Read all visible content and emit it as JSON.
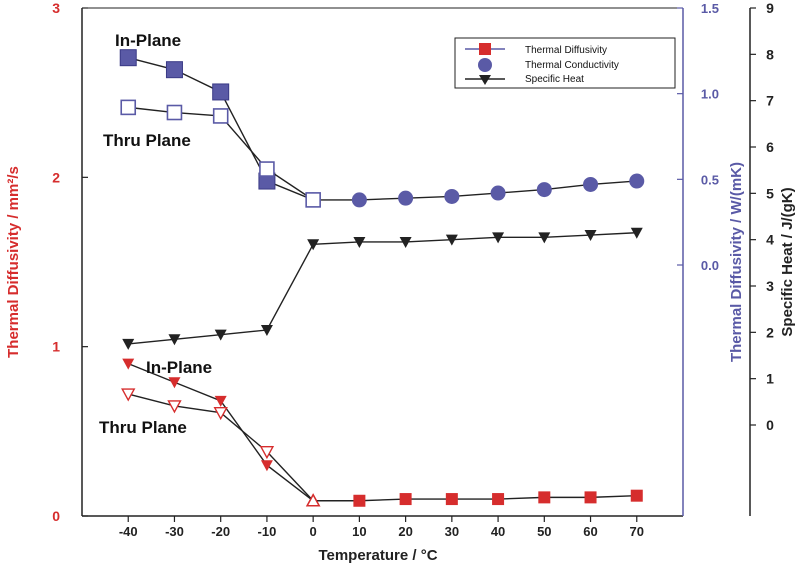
{
  "chart_data": {
    "type": "line",
    "xlabel": "Temperature / °C",
    "x_ticks": [
      "-40",
      "-30",
      "-20",
      "-10",
      "0",
      "10",
      "20",
      "30",
      "40",
      "50",
      "60",
      "70"
    ],
    "xlim": [
      -50,
      80
    ],
    "y_left": {
      "label": "Thermal Diffusivity / mm²/s",
      "ylim": [
        0,
        3
      ],
      "ticks": [
        "0",
        "1",
        "2",
        "3"
      ],
      "color": "#d62d2d"
    },
    "y_right_blue": {
      "label": "Thermal Diffusivity / W/(mK)",
      "ylim": [
        0,
        1.5
      ],
      "ticks": [
        "0.0",
        "0.5",
        "1.0",
        "1.5"
      ],
      "color": "#5a5aa6"
    },
    "y_right_black": {
      "label": "Specific Heat / J/(gK)",
      "ylim": [
        0,
        9
      ],
      "ticks": [
        "0",
        "1",
        "2",
        "3",
        "4",
        "5",
        "6",
        "7",
        "8",
        "9"
      ],
      "color": "#222222"
    },
    "legend": [
      "Thermal Diffusivity",
      "Thermal Conductivity",
      "Specific Heat"
    ],
    "annotations": [
      "In-Plane",
      "Thru Plane",
      "In-Plane",
      "Thru Plane"
    ],
    "series": [
      {
        "name": "Thermal Conductivity",
        "variant": "In-Plane",
        "axis": "blue",
        "x": [
          -40,
          -30,
          -20,
          -10,
          0,
          10,
          20,
          30,
          40,
          50,
          60,
          70
        ],
        "y": [
          1.21,
          1.14,
          1.01,
          0.49,
          0.38,
          0.38,
          0.39,
          0.4,
          0.42,
          0.44,
          0.47,
          0.49
        ]
      },
      {
        "name": "Thermal Conductivity",
        "variant": "Thru Plane",
        "axis": "blue",
        "x": [
          -40,
          -30,
          -20,
          -10,
          0
        ],
        "y": [
          0.92,
          0.89,
          0.87,
          0.56,
          0.38
        ]
      },
      {
        "name": "Specific Heat",
        "axis": "black",
        "x": [
          -40,
          -30,
          -20,
          -10,
          0,
          10,
          20,
          30,
          40,
          50,
          60,
          70
        ],
        "y": [
          1.75,
          1.85,
          1.95,
          2.05,
          3.9,
          3.95,
          3.95,
          4.0,
          4.05,
          4.05,
          4.1,
          4.15
        ]
      },
      {
        "name": "Thermal Diffusivity",
        "variant": "In-Plane",
        "axis": "red",
        "x": [
          -40,
          -30,
          -20,
          -10,
          0,
          10,
          20,
          30,
          40,
          50,
          60,
          70
        ],
        "y": [
          0.9,
          0.79,
          0.68,
          0.3,
          0.09,
          0.09,
          0.1,
          0.1,
          0.1,
          0.11,
          0.11,
          0.12
        ]
      },
      {
        "name": "Thermal Diffusivity",
        "variant": "Thru Plane",
        "axis": "red",
        "x": [
          -40,
          -30,
          -20,
          -10,
          0
        ],
        "y": [
          0.72,
          0.65,
          0.61,
          0.38,
          0.09
        ]
      }
    ]
  }
}
